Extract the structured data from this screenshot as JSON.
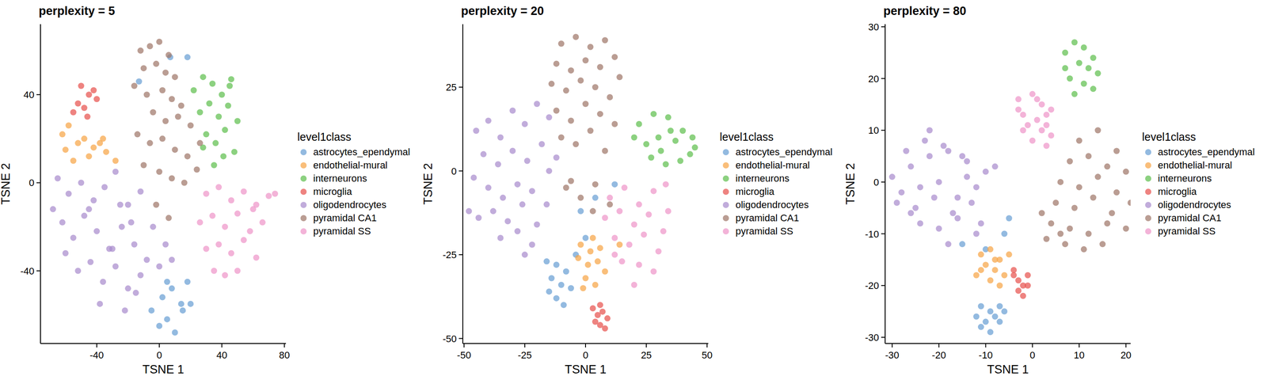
{
  "chart_data": [
    {
      "type": "scatter",
      "title": "perplexity = 5",
      "x_label": "TSNE 1",
      "y_label": "TSNE 2",
      "legend_title": "level1class",
      "xlim": [
        -76,
        81
      ],
      "ylim": [
        -73,
        72
      ],
      "xticks": [
        -40,
        0,
        40,
        80
      ],
      "yticks": [
        -40,
        0,
        40
      ],
      "series": [
        {
          "name": "astrocytes_ependymal",
          "color": "#6a9fd4",
          "x": [
            0,
            5,
            10,
            15,
            20,
            2,
            8,
            14,
            18,
            5,
            -5,
            7,
            18,
            -13
          ],
          "values": [
            -65,
            -62,
            -68,
            -58,
            -55,
            -52,
            -48,
            -55,
            -45,
            -45,
            -58,
            57,
            57,
            46
          ]
        },
        {
          "name": "endothelial-mural",
          "color": "#f7a546",
          "x": [
            -62,
            -58,
            -52,
            -48,
            -42,
            -38,
            -34,
            -55,
            -45,
            -36,
            -28,
            -60
          ],
          "values": [
            22,
            26,
            18,
            20,
            16,
            18,
            14,
            10,
            12,
            20,
            10,
            15
          ]
        },
        {
          "name": "interneurons",
          "color": "#5fbf4f",
          "x": [
            22,
            28,
            34,
            40,
            46,
            26,
            32,
            38,
            44,
            50,
            30,
            36,
            42,
            48,
            35,
            41,
            28,
            45
          ],
          "values": [
            42,
            48,
            45,
            40,
            47,
            32,
            36,
            30,
            35,
            28,
            22,
            18,
            24,
            14,
            8,
            12,
            16,
            44
          ]
        },
        {
          "name": "microglia",
          "color": "#e8534f",
          "x": [
            -55,
            -52,
            -48,
            -45,
            -42,
            -40,
            -50,
            -46
          ],
          "values": [
            32,
            36,
            34,
            40,
            42,
            38,
            44,
            30
          ]
        },
        {
          "name": "oligodendrocytes",
          "color": "#a98ccd",
          "x": [
            -65,
            -58,
            -50,
            -42,
            -35,
            -28,
            -20,
            -12,
            -4,
            4,
            -62,
            -55,
            -48,
            -40,
            -32,
            -24,
            -16,
            -8,
            0,
            -60,
            -52,
            -44,
            -36,
            -28,
            -20,
            -12,
            -45,
            -38,
            -30,
            -22,
            -15,
            -25,
            -18,
            -68,
            8
          ],
          "values": [
            2,
            -5,
            0,
            -8,
            -2,
            5,
            -10,
            -4,
            -20,
            -28,
            -18,
            -25,
            -15,
            -22,
            -30,
            -20,
            -28,
            -35,
            -38,
            -32,
            -40,
            -36,
            -45,
            -38,
            -48,
            -42,
            -12,
            -55,
            -30,
            -58,
            -50,
            -10,
            -18,
            -12,
            -35
          ]
        },
        {
          "name": "pyramidal CA1",
          "color": "#a0776a",
          "x": [
            -12,
            -6,
            0,
            6,
            -10,
            -2,
            4,
            10,
            -16,
            -8,
            2,
            8,
            14,
            -4,
            4,
            12,
            20,
            -14,
            -6,
            2,
            10,
            18,
            26,
            -10,
            0,
            8,
            16,
            24,
            -2,
            6
          ],
          "values": [
            60,
            62,
            64,
            58,
            52,
            54,
            50,
            48,
            44,
            40,
            42,
            38,
            35,
            32,
            28,
            30,
            26,
            22,
            18,
            20,
            15,
            12,
            18,
            8,
            5,
            2,
            0,
            6,
            -10,
            -16
          ]
        },
        {
          "name": "pyramidal SS",
          "color": "#ee95c9",
          "x": [
            30,
            38,
            46,
            54,
            62,
            70,
            26,
            34,
            42,
            50,
            58,
            66,
            74,
            30,
            38,
            46,
            54,
            62,
            42,
            50,
            35,
            60
          ],
          "values": [
            -5,
            -2,
            -8,
            -4,
            -10,
            -6,
            -18,
            -15,
            -20,
            -14,
            -22,
            -18,
            -5,
            -30,
            -28,
            -32,
            -26,
            -34,
            -42,
            -40,
            -40,
            -12
          ]
        }
      ]
    },
    {
      "type": "scatter",
      "title": "perplexity = 20",
      "x_label": "TSNE 1",
      "y_label": "TSNE 2",
      "legend_title": "level1class",
      "xlim": [
        -50.5,
        50.5
      ],
      "ylim": [
        -51.5,
        43.8
      ],
      "xticks": [
        -50,
        -25,
        0,
        25,
        50
      ],
      "yticks": [
        -50,
        -25,
        0,
        25
      ],
      "series": [
        {
          "name": "astrocytes_ependymal",
          "color": "#6a9fd4",
          "x": [
            -16,
            -12,
            -8,
            -14,
            -10,
            -6,
            -12,
            -9,
            -15,
            0,
            4,
            -2,
            12,
            -4
          ],
          "values": [
            -27,
            -28,
            -30,
            -32,
            -34,
            -35,
            -38,
            -40,
            -36,
            -20,
            -8,
            -12,
            -4,
            -25
          ]
        },
        {
          "name": "endothelial-mural",
          "color": "#f7a546",
          "x": [
            -2,
            2,
            6,
            -3,
            1,
            5,
            8,
            0,
            4,
            -1,
            3,
            14
          ],
          "values": [
            -22,
            -24,
            -23,
            -26,
            -28,
            -27,
            -30,
            -32,
            -34,
            -35,
            -20,
            -22
          ]
        },
        {
          "name": "interneurons",
          "color": "#5fbf4f",
          "x": [
            22,
            28,
            34,
            40,
            44,
            25,
            31,
            37,
            43,
            20,
            27,
            33,
            39,
            45,
            35,
            30
          ],
          "values": [
            14,
            17,
            16,
            12,
            10,
            8,
            6,
            9,
            5,
            10,
            4,
            2,
            3,
            7,
            12,
            10
          ]
        },
        {
          "name": "microglia",
          "color": "#e8534f",
          "x": [
            3,
            5,
            7,
            9,
            4,
            6,
            8,
            6
          ],
          "values": [
            -41,
            -43,
            -42,
            -44,
            -45,
            -46,
            -47,
            -40
          ]
        },
        {
          "name": "oligodendrocytes",
          "color": "#a98ccd",
          "x": [
            -45,
            -40,
            -35,
            -30,
            -25,
            -20,
            -15,
            -42,
            -36,
            -30,
            -24,
            -18,
            -12,
            -46,
            -40,
            -34,
            -28,
            -22,
            -16,
            -44,
            -38,
            -32,
            -26,
            -20,
            -35,
            -28,
            -22,
            -48,
            -25,
            -15
          ],
          "values": [
            12,
            15,
            10,
            18,
            14,
            20,
            16,
            5,
            2,
            6,
            3,
            8,
            4,
            -2,
            -5,
            -8,
            -4,
            -6,
            -10,
            -14,
            -12,
            -15,
            -10,
            -16,
            -20,
            -18,
            -22,
            -12,
            -25,
            0
          ]
        },
        {
          "name": "pyramidal CA1",
          "color": "#a0776a",
          "x": [
            -10,
            -4,
            2,
            8,
            -12,
            -6,
            0,
            6,
            12,
            -14,
            -8,
            -2,
            4,
            10,
            14,
            -12,
            -6,
            0,
            6,
            12,
            -10,
            -4,
            2,
            8,
            -8,
            -2,
            4,
            10,
            -6,
            3
          ],
          "values": [
            38,
            40,
            37,
            39,
            32,
            30,
            33,
            31,
            34,
            26,
            24,
            27,
            25,
            22,
            28,
            18,
            15,
            20,
            17,
            14,
            10,
            8,
            12,
            6,
            -5,
            -8,
            -4,
            -10,
            -3,
            -12
          ]
        },
        {
          "name": "pyramidal SS",
          "color": "#ee95c9",
          "x": [
            10,
            16,
            22,
            28,
            34,
            8,
            14,
            20,
            26,
            32,
            12,
            18,
            24,
            30,
            15,
            22,
            28,
            12,
            20,
            33
          ],
          "values": [
            -8,
            -5,
            -10,
            -6,
            -12,
            -14,
            -12,
            -16,
            -13,
            -18,
            -20,
            -22,
            -19,
            -24,
            -27,
            -28,
            -30,
            -25,
            -34,
            -4
          ]
        }
      ]
    },
    {
      "type": "scatter",
      "title": "perplexity = 80",
      "x_label": "TSNE 1",
      "y_label": "TSNE 2",
      "legend_title": "level1class",
      "xlim": [
        -31.5,
        21
      ],
      "ylim": [
        -31.2,
        30.5
      ],
      "xticks": [
        -30,
        -20,
        -10,
        0,
        10,
        20
      ],
      "yticks": [
        -30,
        -20,
        -10,
        0,
        10,
        20,
        30
      ],
      "series": [
        {
          "name": "astrocytes_ependymal",
          "color": "#6a9fd4",
          "x": [
            -11,
            -9,
            -7,
            -12,
            -10,
            -8,
            -6,
            -11,
            -9,
            -7,
            -10,
            -6,
            -15,
            -5
          ],
          "values": [
            -24,
            -25,
            -24,
            -26,
            -27,
            -26,
            -25,
            -28,
            -29,
            -27,
            -13,
            -10,
            -12,
            -7
          ]
        },
        {
          "name": "endothelial-mural",
          "color": "#f7a546",
          "x": [
            -11,
            -9,
            -7,
            -10,
            -8,
            -6,
            -12,
            -9,
            -7,
            -11,
            -8,
            -5
          ],
          "values": [
            -14,
            -13,
            -15,
            -16,
            -17,
            -18,
            -18,
            -19,
            -20,
            -17,
            -15,
            -14
          ]
        },
        {
          "name": "interneurons",
          "color": "#5fbf4f",
          "x": [
            9,
            11,
            13,
            7,
            10,
            12,
            14,
            8,
            11,
            13,
            9,
            7
          ],
          "values": [
            27,
            26,
            24,
            25,
            23,
            22,
            21,
            20,
            19,
            18,
            17,
            22
          ]
        },
        {
          "name": "microglia",
          "color": "#e8534f",
          "x": [
            -4,
            -3,
            -2,
            -1,
            -3,
            -2,
            -4,
            -1
          ],
          "values": [
            -18,
            -19,
            -20,
            -18,
            -21,
            -22,
            -17,
            -20
          ]
        },
        {
          "name": "oligodendrocytes",
          "color": "#a98ccd",
          "x": [
            -30,
            -26,
            -22,
            -18,
            -14,
            -10,
            -28,
            -24,
            -20,
            -16,
            -12,
            -8,
            -29,
            -25,
            -21,
            -17,
            -13,
            -27,
            -23,
            -19,
            -15,
            -11,
            -24,
            -20,
            -16,
            -12,
            -22,
            -18,
            -26,
            -14
          ],
          "values": [
            1,
            3,
            5,
            6,
            4,
            2,
            -2,
            -1,
            0,
            -3,
            -1,
            3,
            -4,
            -5,
            -3,
            -6,
            -4,
            6,
            8,
            7,
            5,
            -8,
            -8,
            -9,
            -7,
            -10,
            10,
            -12,
            -6,
            1
          ]
        },
        {
          "name": "pyramidal CA1",
          "color": "#a0776a",
          "x": [
            10,
            14,
            18,
            8,
            12,
            16,
            20,
            6,
            10,
            14,
            18,
            22,
            5,
            9,
            13,
            17,
            21,
            4,
            8,
            12,
            16,
            20,
            3,
            7,
            11,
            15,
            2,
            6
          ],
          "values": [
            8,
            10,
            6,
            4,
            5,
            3,
            2,
            0,
            -1,
            1,
            -2,
            -1,
            -4,
            -5,
            -3,
            -6,
            -4,
            -8,
            -9,
            -10,
            -8,
            -9,
            -11,
            -12,
            -13,
            -12,
            -6,
            -10
          ]
        },
        {
          "name": "pyramidal SS",
          "color": "#ee95c9",
          "x": [
            -3,
            0,
            2,
            4,
            -2,
            1,
            3,
            -1,
            2,
            4,
            -3,
            0,
            3,
            1,
            -2,
            3
          ],
          "values": [
            16,
            17,
            15,
            14,
            13,
            12,
            13,
            11,
            10,
            9,
            14,
            8,
            7,
            16,
            10,
            11
          ]
        }
      ]
    }
  ]
}
